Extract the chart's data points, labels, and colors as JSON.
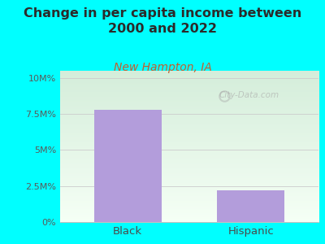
{
  "title": "Change in per capita income between\n2000 and 2022",
  "subtitle": "New Hampton, IA",
  "categories": [
    "Black",
    "Hispanic"
  ],
  "values": [
    7.8,
    2.2
  ],
  "bar_color": "#b39ddb",
  "background_color": "#00ffff",
  "grad_top": "#d4edda",
  "grad_bottom": "#f5fff5",
  "title_fontsize": 11.5,
  "subtitle_fontsize": 10,
  "tick_labels": [
    "0%",
    "2.5M%",
    "5M%",
    "7.5M%",
    "10M%"
  ],
  "tick_values": [
    0,
    2.5,
    5.0,
    7.5,
    10.0
  ],
  "ylim": [
    0,
    10.5
  ],
  "watermark": "City-Data.com",
  "title_color": "#2b2b2b",
  "subtitle_color": "#c0392b",
  "tick_color": "#5a5a5a",
  "xlabel_color": "#4a4a4a",
  "bar_width": 0.55
}
